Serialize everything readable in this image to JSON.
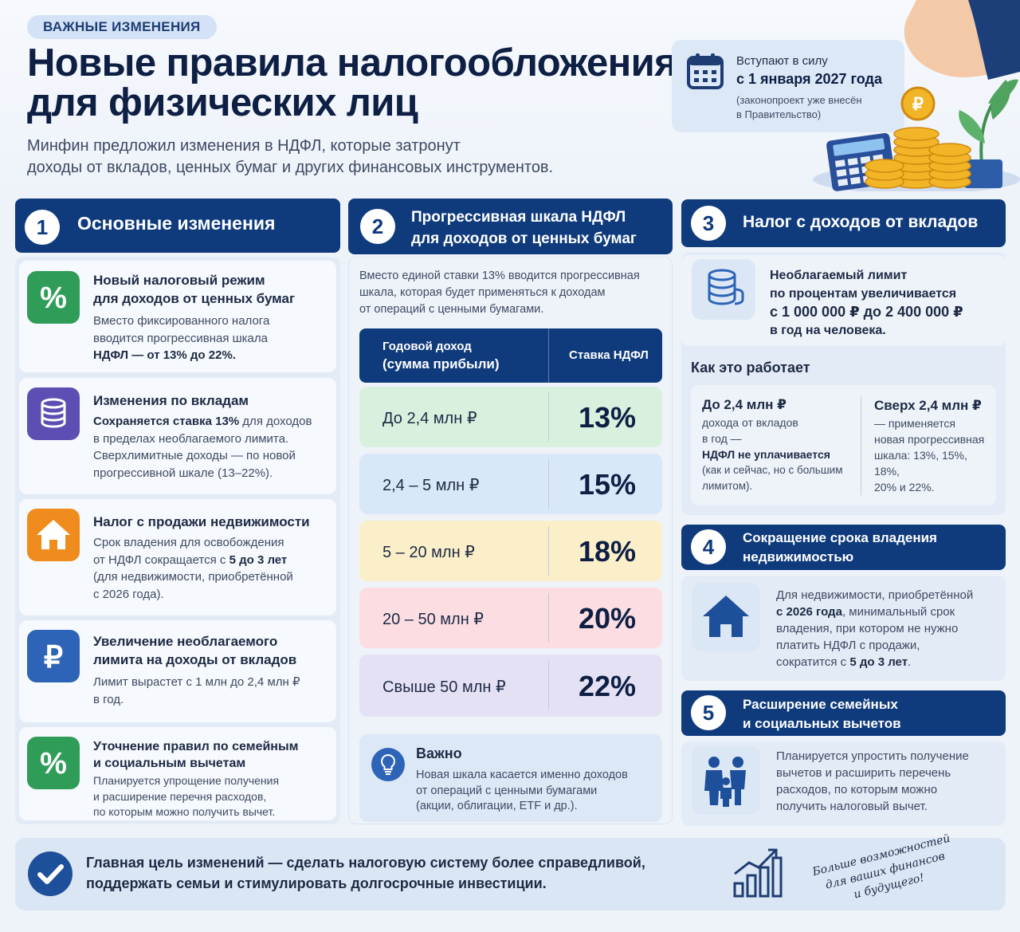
{
  "header": {
    "tag": "ВАЖНЫЕ ИЗМЕНЕНИЯ",
    "title_line1": "Новые правила налогообложения",
    "title_line2": "для физических лиц",
    "subtitle_line1": "Минфин предложил изменения в НДФЛ, которые затронут",
    "subtitle_line2": "доходы от вкладов, ценных бумаг и других финансовых инструментов.",
    "date_line1": "Вступают в силу",
    "date_line2": "с 1 января 2027 года",
    "date_line3a": "(законопроект уже внесён",
    "date_line3b": "в Правительство)"
  },
  "section1": {
    "num": "1",
    "title": "Основные изменения",
    "items": [
      {
        "title1": "Новый налоговый режим",
        "title2": "для доходов от ценных бумаг",
        "d1": "Вместо фиксированного налога",
        "d2": "вводится прогрессивная шкала",
        "d3": "НДФЛ — от 13% до 22%.",
        "icon": "percent-icon"
      },
      {
        "title1": "Изменения по вкладам",
        "d1_bold": "Сохраняется ставка 13%",
        "d1_rest": " для доходов",
        "d2": "в пределах необлагаемого лимита.",
        "d3": "Сверхлимитные доходы — по новой",
        "d4": "прогрессивной шкале (13–22%).",
        "icon": "coins-icon"
      },
      {
        "title1": "Налог с продажи недвижимости",
        "d1": "Срок владения для освобождения",
        "d2a": "от НДФЛ сокращается с ",
        "d2b": "5 до 3 лет",
        "d3": "(для недвижимости, приобретённой",
        "d4": "с 2026 года).",
        "icon": "house-icon"
      },
      {
        "title1": "Увеличение необлагаемого",
        "title2": "лимита на доходы от вкладов",
        "d1": "Лимит вырастет с 1 млн до 2,4 млн ₽",
        "d2": "в год.",
        "icon": "ruble-icon"
      },
      {
        "title1": "Уточнение правил по семейным",
        "title2": "и социальным вычетам",
        "d1": "Планируется упрощение получения",
        "d2": "и расширение перечня расходов,",
        "d3": "по которым можно получить вычет.",
        "icon": "percent-icon"
      }
    ]
  },
  "section2": {
    "num": "2",
    "title1": "Прогрессивная шкала НДФЛ",
    "title2": "для доходов от ценных бумаг",
    "intro1": "Вместо единой ставки 13% вводится прогрессивная",
    "intro2": "шкала, которая будет применяться к доходам",
    "intro3": "от операций с ценными бумагами.",
    "col1a": "Годовой доход",
    "col1b": "(сумма прибыли)",
    "col2": "Ставка НДФЛ",
    "rows": [
      {
        "range": "До 2,4 млн ₽",
        "rate": "13%",
        "color": "#d9f0de"
      },
      {
        "range": "2,4 – 5 млн ₽",
        "rate": "15%",
        "color": "#d8e8f8"
      },
      {
        "range": "5 – 20 млн ₽",
        "rate": "18%",
        "color": "#fbefc9"
      },
      {
        "range": "20 – 50 млн ₽",
        "rate": "20%",
        "color": "#fbdde2"
      },
      {
        "range": "Свыше 50 млн ₽",
        "rate": "22%",
        "color": "#e4e1f5"
      }
    ],
    "note_title": "Важно",
    "note1": "Новая шкала касается именно доходов",
    "note2": "от операций с ценными бумагами",
    "note3": "(акции, облигации, ETF и др.)."
  },
  "section3": {
    "num": "3",
    "title": "Налог с доходов от вкладов",
    "limit1": "Необлагаемый лимит",
    "limit2": "по процентам увеличивается",
    "limit3": "с 1 000 000 ₽ до 2 400 000 ₽",
    "limit4": "в год на человека.",
    "how": "Как это работает",
    "left_title": "До 2,4 млн ₽",
    "left1": "дохода от вкладов",
    "left2": "в год —",
    "left3": "НДФЛ не уплачивается",
    "left4": "(как и сейчас, но с большим",
    "left5": "лимитом).",
    "right_title": "Сверх 2,4 млн ₽",
    "right1": "— применяется",
    "right2": "новая прогрессивная",
    "right3": "шкала: 13%, 15%, 18%,",
    "right4": "20% и 22%."
  },
  "section4": {
    "num": "4",
    "title1": "Сокращение срока владения",
    "title2": "недвижимостью",
    "t1": "Для недвижимости, приобретённой",
    "t2b": "с 2026 года",
    "t2r": ", минимальный срок",
    "t3": "владения, при котором не нужно",
    "t4": "платить НДФЛ с продажи,",
    "t5a": "сократится с ",
    "t5b": "5 до 3 лет",
    "t5c": "."
  },
  "section5": {
    "num": "5",
    "title1": "Расширение семейных",
    "title2": "и социальных вычетов",
    "t1": "Планируется упростить получение",
    "t2": "вычетов и расширить перечень",
    "t3": "расходов, по которым можно",
    "t4": "получить налоговый вычет."
  },
  "footer": {
    "line1": "Главная цель изменений — сделать налоговую систему более справедливой,",
    "line2": "поддержать семьи и стимулировать долгосрочные инвестиции.",
    "hand1": "Больше возможностей",
    "hand2": "для ваших финансов",
    "hand3": "и будущего!"
  },
  "colors": {
    "navy": "#0f3b7d",
    "green": "#2f9d57",
    "purple": "#5b4fb3",
    "orange": "#f08c1e",
    "blue": "#2d64b7"
  }
}
